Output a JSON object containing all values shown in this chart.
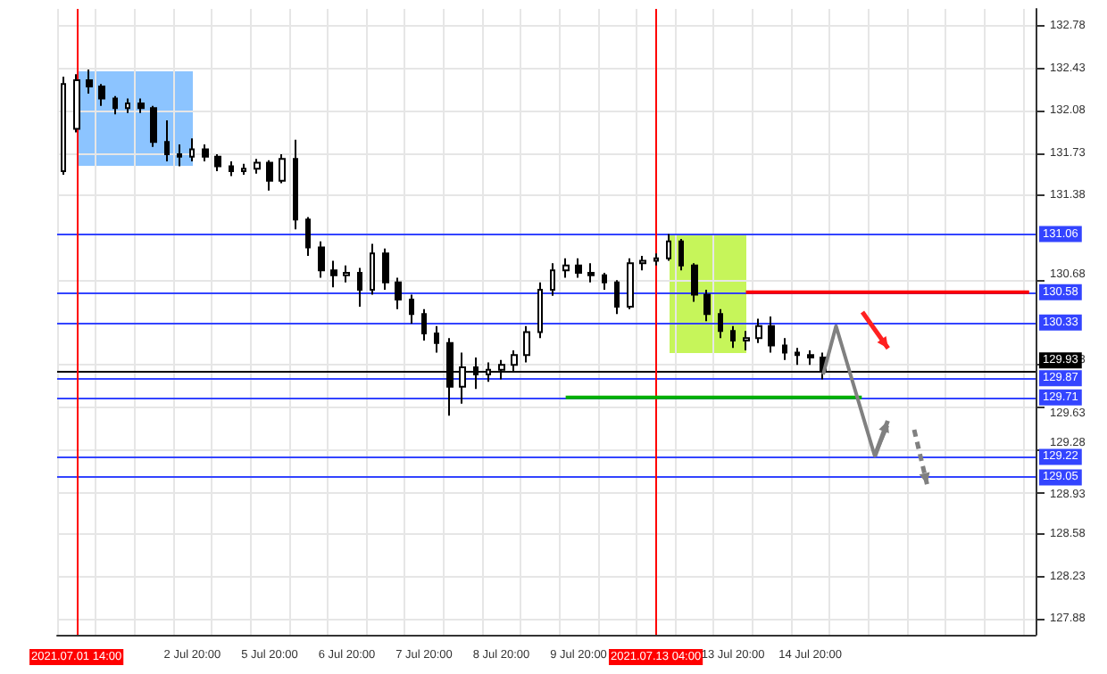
{
  "chart_data": {
    "type": "candlestick",
    "categories": [
      null,
      "2021.07.01 14:00",
      null,
      null,
      null,
      null,
      null,
      null,
      null,
      null,
      "2 Jul 20:00",
      null,
      null,
      null,
      null,
      null,
      "5 Jul 20:00",
      null,
      null,
      null,
      null,
      null,
      "6 Jul 20:00",
      null,
      null,
      null,
      null,
      null,
      "7 Jul 20:00",
      null,
      null,
      null,
      null,
      null,
      "8 Jul 20:00",
      null,
      null,
      null,
      null,
      null,
      "9 Jul 20:00",
      null,
      null,
      null,
      null,
      null,
      "2021.07.13 04:00",
      null,
      null,
      null,
      null,
      null,
      "13 Jul 20:00",
      null,
      null,
      null,
      null,
      null,
      "14 Jul 20:00",
      null,
      null,
      null,
      null,
      null,
      null,
      null,
      null,
      null,
      null,
      null,
      null,
      null,
      null,
      null,
      null,
      null
    ],
    "ohlc": [
      [
        131.58,
        132.36,
        131.55,
        132.3
      ],
      [
        131.93,
        132.38,
        131.9,
        132.33
      ],
      [
        132.33,
        132.42,
        132.22,
        132.28
      ],
      [
        132.28,
        132.3,
        132.12,
        132.18
      ],
      [
        132.18,
        132.2,
        132.05,
        132.1
      ],
      [
        132.1,
        132.18,
        132.06,
        132.14
      ],
      [
        132.14,
        132.18,
        132.06,
        132.1
      ],
      [
        132.1,
        132.12,
        131.78,
        131.82
      ],
      [
        131.82,
        132.0,
        131.66,
        131.72
      ],
      [
        131.72,
        131.8,
        131.62,
        131.7
      ],
      [
        131.7,
        131.85,
        131.66,
        131.76
      ],
      [
        131.76,
        131.8,
        131.66,
        131.7
      ],
      [
        131.7,
        131.72,
        131.58,
        131.62
      ],
      [
        131.62,
        131.66,
        131.54,
        131.58
      ],
      [
        131.58,
        131.64,
        131.55,
        131.6
      ],
      [
        131.6,
        131.68,
        131.56,
        131.65
      ],
      [
        131.65,
        131.67,
        131.42,
        131.5
      ],
      [
        131.5,
        131.72,
        131.48,
        131.68
      ],
      [
        131.68,
        131.84,
        131.1,
        131.18
      ],
      [
        131.18,
        131.2,
        130.88,
        130.95
      ],
      [
        130.95,
        131.0,
        130.7,
        130.76
      ],
      [
        130.76,
        130.84,
        130.62,
        130.72
      ],
      [
        130.72,
        130.8,
        130.66,
        130.74
      ],
      [
        130.74,
        130.78,
        130.46,
        130.6
      ],
      [
        130.6,
        130.98,
        130.56,
        130.9
      ],
      [
        130.9,
        130.94,
        130.6,
        130.66
      ],
      [
        130.66,
        130.7,
        130.44,
        130.52
      ],
      [
        130.52,
        130.56,
        130.32,
        130.4
      ],
      [
        130.4,
        130.44,
        130.18,
        130.24
      ],
      [
        130.24,
        130.3,
        130.08,
        130.16
      ],
      [
        130.16,
        130.2,
        129.56,
        129.8
      ],
      [
        129.8,
        130.08,
        129.66,
        129.96
      ],
      [
        129.96,
        130.04,
        129.78,
        129.9
      ],
      [
        129.9,
        130.0,
        129.84,
        129.94
      ],
      [
        129.94,
        130.02,
        129.86,
        129.98
      ],
      [
        129.98,
        130.1,
        129.92,
        130.06
      ],
      [
        130.06,
        130.3,
        130.0,
        130.25
      ],
      [
        130.25,
        130.66,
        130.2,
        130.6
      ],
      [
        130.6,
        130.82,
        130.55,
        130.76
      ],
      [
        130.76,
        130.86,
        130.7,
        130.8
      ],
      [
        130.8,
        130.86,
        130.7,
        130.74
      ],
      [
        130.74,
        130.82,
        130.66,
        130.72
      ],
      [
        130.72,
        130.74,
        130.6,
        130.66
      ],
      [
        130.66,
        130.68,
        130.4,
        130.46
      ],
      [
        130.46,
        130.86,
        130.44,
        130.82
      ],
      [
        130.82,
        130.88,
        130.76,
        130.84
      ],
      [
        130.84,
        130.9,
        130.8,
        130.86
      ],
      [
        130.86,
        131.06,
        130.84,
        131.0
      ],
      [
        131.0,
        131.02,
        130.76,
        130.8
      ],
      [
        130.8,
        130.82,
        130.5,
        130.56
      ],
      [
        130.56,
        130.6,
        130.34,
        130.4
      ],
      [
        130.4,
        130.44,
        130.2,
        130.26
      ],
      [
        130.26,
        130.3,
        130.12,
        130.18
      ],
      [
        130.18,
        130.26,
        130.1,
        130.2
      ],
      [
        130.2,
        130.36,
        130.16,
        130.3
      ],
      [
        130.3,
        130.38,
        130.08,
        130.14
      ],
      [
        130.14,
        130.2,
        130.02,
        130.08
      ],
      [
        130.08,
        130.12,
        129.98,
        130.06
      ],
      [
        130.06,
        130.1,
        129.98,
        130.04
      ],
      [
        130.04,
        130.08,
        129.86,
        129.93
      ],
      null,
      null,
      null,
      null,
      null,
      null,
      null,
      null,
      null,
      null,
      null,
      null,
      null,
      null,
      null,
      null
    ],
    "color": "#000000",
    "series": [
      {
        "type": "line",
        "color": "#ff0000",
        "values": [
          null,
          null,
          null,
          null,
          null,
          null,
          null,
          null,
          null,
          null,
          null,
          null,
          null,
          null,
          null,
          null,
          null,
          null,
          null,
          null,
          null,
          null,
          null,
          null,
          null,
          null,
          null,
          null,
          null,
          null,
          null,
          null,
          null,
          null,
          null,
          null,
          null,
          null,
          null,
          null,
          null,
          null,
          null,
          null,
          null,
          null,
          null,
          null,
          null,
          null,
          null,
          null,
          null,
          130.58,
          130.58,
          130.58,
          130.58,
          130.58,
          130.58,
          130.58,
          130.58,
          130.58,
          130.58,
          130.58,
          130.58,
          130.58,
          130.58,
          130.58,
          130.58,
          130.58,
          130.58,
          130.58,
          130.58,
          130.58,
          130.58,
          130.58
        ]
      },
      {
        "type": "line",
        "color": "#00b000",
        "values": [
          null,
          null,
          null,
          null,
          null,
          null,
          null,
          null,
          null,
          null,
          null,
          null,
          null,
          null,
          null,
          null,
          null,
          null,
          null,
          null,
          null,
          null,
          null,
          null,
          null,
          null,
          null,
          null,
          null,
          null,
          null,
          null,
          null,
          null,
          null,
          null,
          null,
          null,
          null,
          129.71,
          129.71,
          129.71,
          129.71,
          129.71,
          129.71,
          129.71,
          129.71,
          129.71,
          129.71,
          129.71,
          129.71,
          129.71,
          129.71,
          129.71,
          129.71,
          129.71,
          129.71,
          129.71,
          129.71,
          129.71,
          129.71,
          129.71,
          129.71,
          null,
          null,
          null,
          null,
          null,
          null,
          null,
          null,
          null,
          null,
          null,
          null,
          null
        ]
      },
      {
        "type": "line",
        "color": "#808080",
        "values": [
          null,
          null,
          null,
          null,
          null,
          null,
          null,
          null,
          null,
          null,
          null,
          null,
          null,
          null,
          null,
          null,
          null,
          null,
          null,
          null,
          null,
          null,
          null,
          null,
          null,
          null,
          null,
          null,
          null,
          null,
          null,
          null,
          null,
          null,
          null,
          null,
          null,
          null,
          null,
          null,
          null,
          null,
          null,
          null,
          null,
          null,
          null,
          null,
          null,
          null,
          null,
          null,
          null,
          null,
          null,
          null,
          null,
          null,
          null,
          129.9,
          130.3,
          null,
          null,
          129.23,
          129.48,
          null,
          null,
          null,
          null,
          null,
          null,
          null,
          null,
          null,
          null,
          null
        ]
      }
    ],
    "ylim": [
      127.75,
      132.92
    ],
    "yticks": [
      132.78,
      132.43,
      132.08,
      131.73,
      131.38,
      130.68,
      129.98,
      129.63,
      129.28,
      128.93,
      128.58,
      128.23,
      127.88
    ],
    "ref_lines": [
      {
        "axis": "y",
        "value": 131.06,
        "label": "131.06",
        "color": "#3344ff"
      },
      {
        "axis": "y",
        "value": 130.58,
        "label": "130.58",
        "color": "#3344ff"
      },
      {
        "axis": "y",
        "value": 130.33,
        "label": "130.33",
        "color": "#3344ff"
      },
      {
        "axis": "y",
        "value": 129.93,
        "label": "129.93",
        "color": "#000000"
      },
      {
        "axis": "y",
        "value": 129.87,
        "label": "129.87",
        "color": "#3344ff"
      },
      {
        "axis": "y",
        "value": 129.71,
        "label": "129.71",
        "color": "#3344ff"
      },
      {
        "axis": "y",
        "value": 129.22,
        "label": "129.22",
        "color": "#3344ff"
      },
      {
        "axis": "y",
        "value": 129.05,
        "label": "129.05",
        "color": "#3344ff"
      },
      {
        "axis": "x",
        "value": "2021.07.01 14:00",
        "color": "#ff0000"
      },
      {
        "axis": "x",
        "value": "2021.07.13 04:00",
        "color": "#ff0000"
      }
    ],
    "grid": true
  }
}
